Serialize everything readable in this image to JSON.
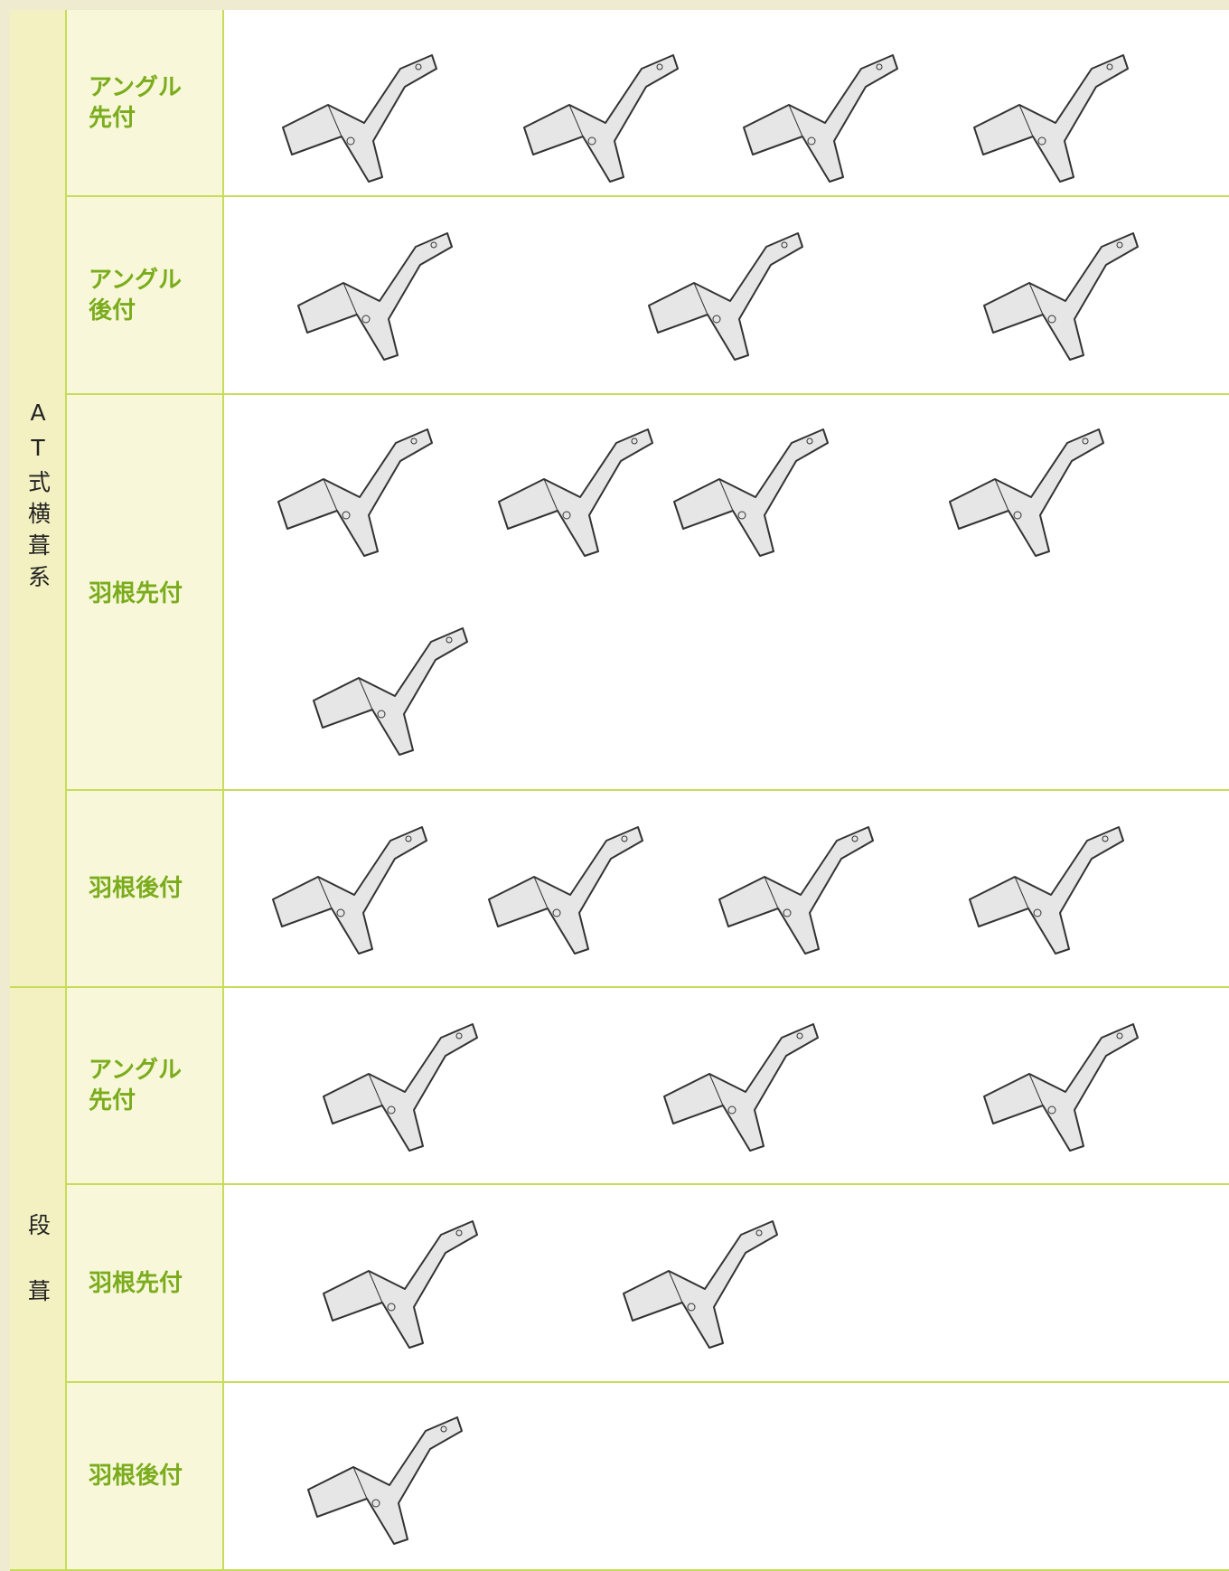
{
  "groups": [
    {
      "label": "AT式横葺系",
      "rows": [
        "アングル先付",
        "アングル後付",
        "羽根先付",
        "羽根後付"
      ]
    },
    {
      "label": "段葺",
      "rows": [
        "アングル先付",
        "羽根先付",
        "羽根後付"
      ]
    }
  ]
}
